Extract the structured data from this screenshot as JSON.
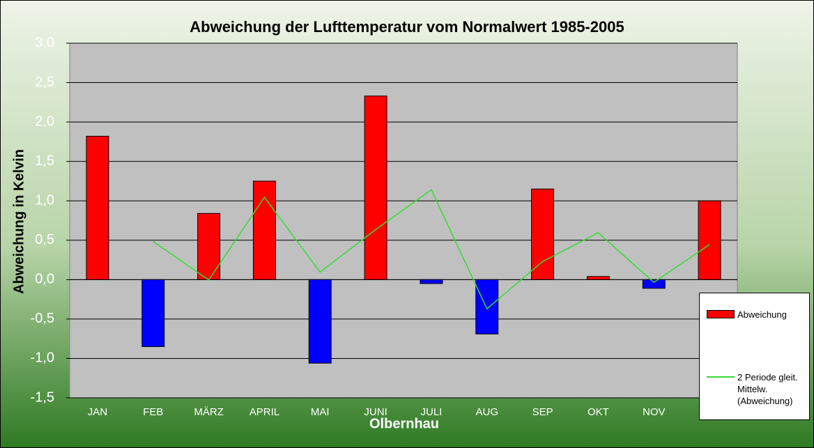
{
  "chart_data": {
    "type": "bar",
    "title": "Abweichung der Lufttemperatur vom Normalwert 1985-2005",
    "x_label": "Olbernhau",
    "y_label": "Abweichung in Kelvin",
    "categories": [
      "JAN",
      "FEB",
      "MÄRZ",
      "APRIL",
      "MAI",
      "JUNI",
      "JULI",
      "AUG",
      "SEP",
      "OKT",
      "NOV",
      null
    ],
    "series": [
      {
        "name": "Abweichung",
        "type": "bar",
        "color": "#ff0000",
        "negative_color": "#0000ff",
        "values": [
          1.82,
          -0.85,
          0.84,
          1.25,
          -1.06,
          2.33,
          -0.05,
          -0.69,
          1.15,
          0.04,
          -0.11,
          1.0
        ]
      },
      {
        "name": "2 Periode gleit. Mittelw. (Abweichung)",
        "type": "line",
        "color": "#33dd33",
        "values": [
          null,
          0.485,
          -0.005,
          1.045,
          0.095,
          0.635,
          1.14,
          -0.37,
          0.23,
          0.595,
          -0.035,
          0.445
        ]
      }
    ],
    "ylim": [
      -1.5,
      3.0
    ],
    "yticks": [
      {
        "value": -1.5,
        "label": "-1,5"
      },
      {
        "value": -1,
        "label": "-1,0"
      },
      {
        "value": -0.5,
        "label": "-0,5"
      },
      {
        "value": 0,
        "label": "0,0"
      },
      {
        "value": 0.5,
        "label": "0,5"
      },
      {
        "value": 1,
        "label": "1,0"
      },
      {
        "value": 1.5,
        "label": "1,5"
      },
      {
        "value": 2,
        "label": "2,0"
      },
      {
        "value": 2.5,
        "label": "2,5"
      },
      {
        "value": 3,
        "label": "3,0"
      }
    ],
    "grid": true
  }
}
